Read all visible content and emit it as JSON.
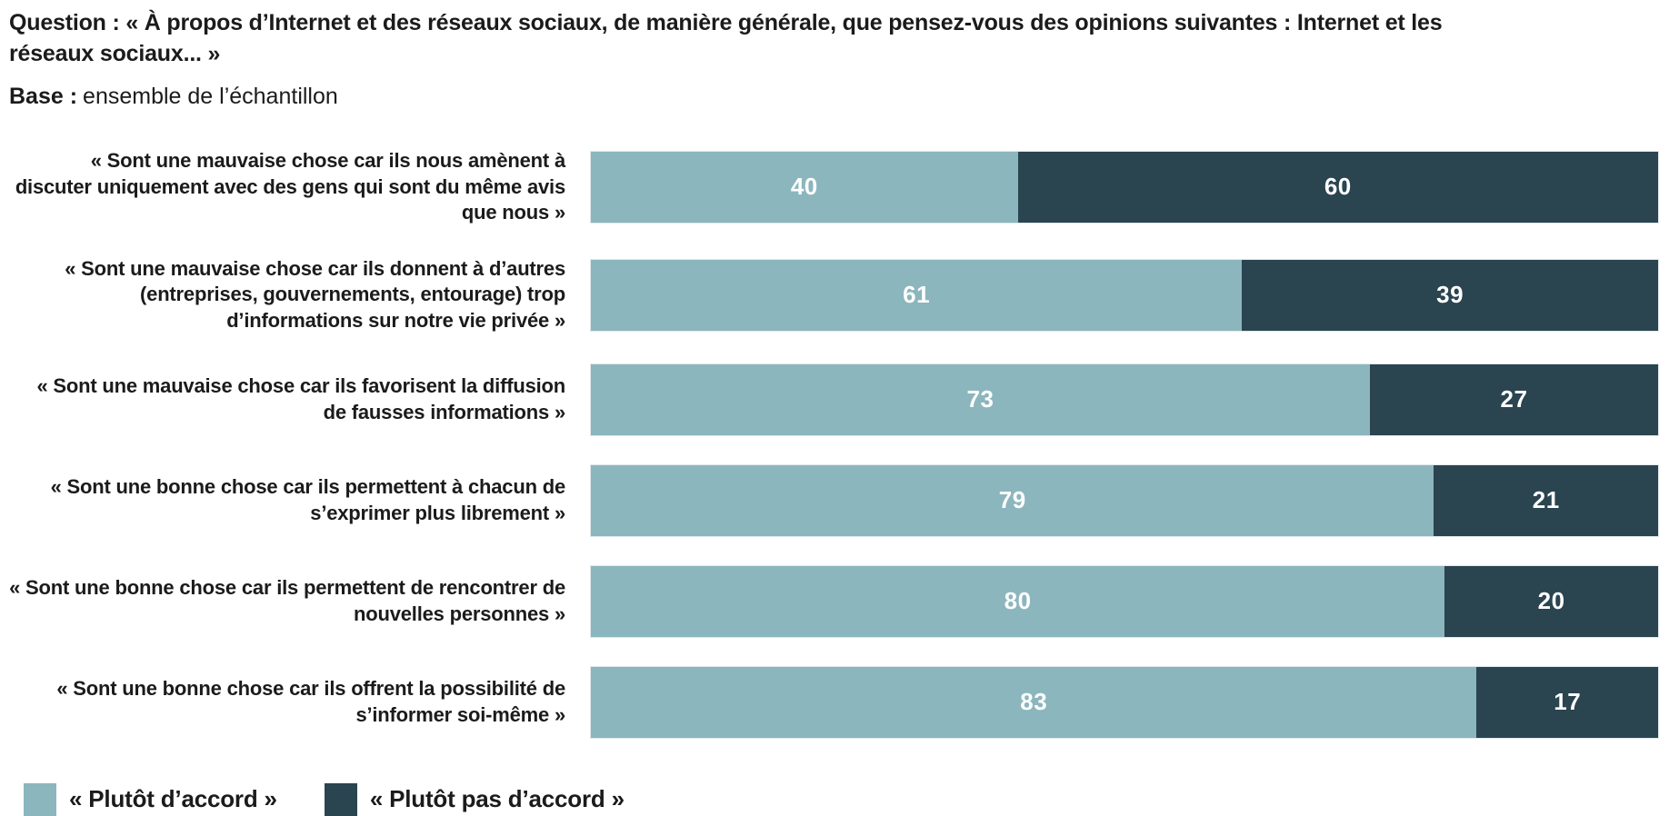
{
  "header": {
    "question_label": "Question :",
    "question_text": " « À propos d’Internet et des réseaux sociaux, de manière générale, que pensez-vous des opinions suivantes : Internet et les réseaux sociaux... »",
    "base_label": "Base :",
    "base_text": "ensemble de l’échantillon"
  },
  "chart_data": {
    "type": "bar",
    "orientation": "horizontal",
    "stacked": true,
    "unit": "%",
    "xlim": [
      0,
      100
    ],
    "grid": false,
    "legend_position": "bottom-left",
    "categories": [
      "« Sont une mauvaise chose car ils nous amènent à discuter uniquement avec des gens qui sont du même avis que nous »",
      "« Sont une mauvaise chose car ils donnent à d’autres (entreprises, gouvernements, entourage) trop d’informations sur notre vie privée »",
      "« Sont une mauvaise chose car ils favorisent la diffusion de fausses informations »",
      "« Sont une bonne chose car ils permettent à chacun de s’exprimer plus librement »",
      "« Sont une bonne chose car ils permettent de rencontrer de nouvelles personnes »",
      "« Sont une bonne chose car ils offrent la possibilité de s’informer soi-même »"
    ],
    "series": [
      {
        "name": "« Plutôt d’accord »",
        "color": "#8cb6bd",
        "values": [
          40,
          61,
          73,
          79,
          80,
          83
        ]
      },
      {
        "name": "« Plutôt pas d’accord »",
        "color": "#2a4450",
        "values": [
          60,
          39,
          27,
          21,
          20,
          17
        ]
      }
    ]
  }
}
